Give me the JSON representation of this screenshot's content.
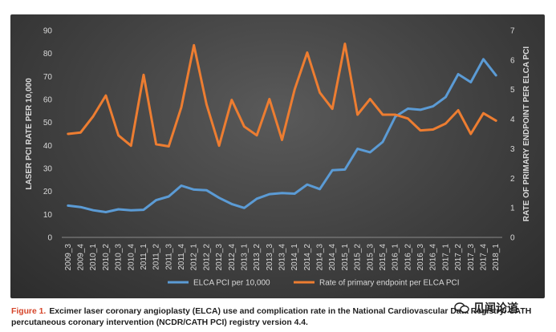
{
  "chart_data": {
    "type": "line",
    "categories": [
      "2009_3",
      "2009_4",
      "2010_1",
      "2010_2",
      "2010_3",
      "2010_4",
      "2011_1",
      "2011_2",
      "2011_3",
      "2011_4",
      "2012_1",
      "2012_2",
      "2012_3",
      "2012_4",
      "2013_1",
      "2013_2",
      "2013_3",
      "2013_4",
      "2014_1",
      "2014_2",
      "2014_3",
      "2014_4",
      "2015_1",
      "2015_2",
      "2015_3",
      "2015_4",
      "2016_1",
      "2016_2",
      "2016_3",
      "2016_4",
      "2017_1",
      "2017_2",
      "2017_3",
      "2017_4",
      "2018_1"
    ],
    "series": [
      {
        "name": "ELCA PCI per 10,000",
        "axis": "left",
        "color": "#5b9bd5",
        "values": [
          13.8,
          13.2,
          11.8,
          11.0,
          12.2,
          11.8,
          12.0,
          16.2,
          17.8,
          22.5,
          20.8,
          20.5,
          17.2,
          14.5,
          12.8,
          16.8,
          18.8,
          19.3,
          19.0,
          23.0,
          21.0,
          29.2,
          29.5,
          38.5,
          37.0,
          41.5,
          52.5,
          56.0,
          55.5,
          57.0,
          61.0,
          71.0,
          67.5,
          77.5,
          70.5
        ]
      },
      {
        "name": "Rate of primary endpoint per ELCA PCI",
        "axis": "right",
        "color": "#ed7d31",
        "values": [
          3.5,
          3.55,
          4.1,
          4.8,
          3.45,
          3.1,
          5.5,
          3.15,
          3.08,
          4.4,
          6.5,
          4.5,
          3.1,
          4.65,
          3.75,
          3.45,
          4.68,
          3.3,
          5.0,
          6.25,
          4.9,
          4.35,
          6.55,
          4.15,
          4.68,
          4.15,
          4.15,
          4.02,
          3.62,
          3.65,
          3.85,
          4.3,
          3.5,
          4.2,
          3.95
        ]
      }
    ],
    "ylabel": "LASER PCI RATE PER 10,000",
    "y2label": "RATE OF PRIMARY ENDPOINT PER ELCA PCI",
    "ylim": [
      0,
      90
    ],
    "yticks": [
      0,
      10,
      20,
      30,
      40,
      50,
      60,
      70,
      80,
      90
    ],
    "y2lim": [
      0,
      7
    ],
    "y2ticks": [
      0,
      1,
      2,
      3,
      4,
      5,
      6,
      7
    ],
    "grid": false,
    "legend_position": "bottom"
  },
  "caption": {
    "label": "Figure 1.",
    "text": "Excimer laser coronary angioplasty (ELCA) use and complication rate in the National Cardiovascular Data Registry/ CATH percutaneous coronary intervention (NCDR/CATH PCI) registry version 4.4."
  },
  "watermark": {
    "text": "见闻论道",
    "icon": "wechat-icon"
  }
}
